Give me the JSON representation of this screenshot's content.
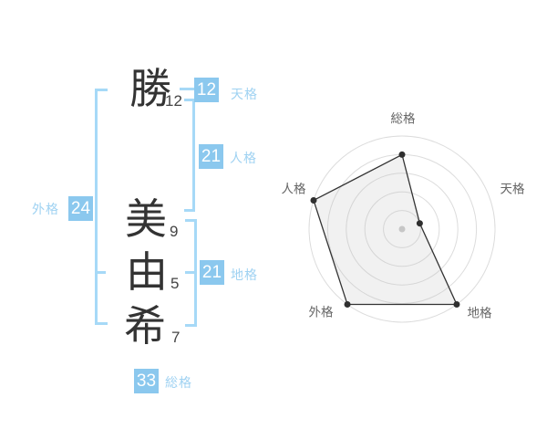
{
  "name_panel": {
    "characters": [
      {
        "char": "勝",
        "strokes": "12"
      },
      {
        "char": "美",
        "strokes": "9"
      },
      {
        "char": "由",
        "strokes": "5"
      },
      {
        "char": "希",
        "strokes": "7"
      }
    ],
    "kaku": {
      "tenkaku": {
        "value": "12",
        "label": "天格"
      },
      "jinkaku": {
        "value": "21",
        "label": "人格"
      },
      "chikaku": {
        "value": "21",
        "label": "地格"
      },
      "gaikaku": {
        "value": "24",
        "label": "外格"
      },
      "soukaku": {
        "value": "33",
        "label": "総格"
      }
    }
  },
  "colors": {
    "badge_bg": "#8bc8ee",
    "badge_text": "#ffffff",
    "kaku_label": "#9fd2f2",
    "bracket": "#a6d9f7",
    "kanji": "#333333",
    "chart_grid": "#dcdcdc",
    "chart_line": "#333333",
    "chart_fill": "rgba(190,190,190,0.22)",
    "chart_dot": "#2f2f2f",
    "chart_center_dot": "#c6c6c6",
    "chart_label": "#666666"
  },
  "chart_data": {
    "type": "radar",
    "axes": [
      "総格",
      "天格",
      "地格",
      "外格",
      "人格"
    ],
    "values": [
      4,
      1,
      5,
      5,
      5
    ],
    "scale_max": 5,
    "rings": 5,
    "start_angle_deg": 90,
    "direction": "clockwise",
    "grid_shape": "circular",
    "legend": "none",
    "axis_scores": {
      "総格": 33,
      "天格": 12,
      "地格": 21,
      "外格": 24,
      "人格": 21
    }
  }
}
